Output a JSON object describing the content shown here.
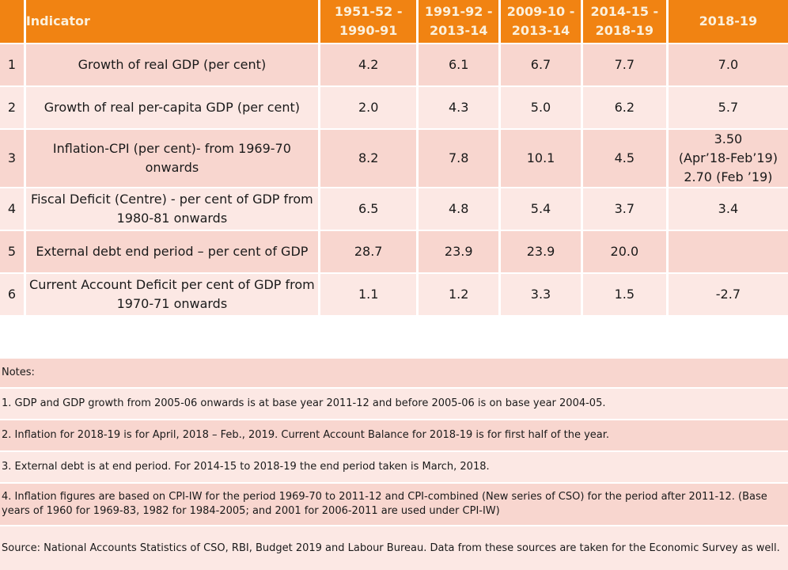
{
  "table": {
    "headers": [
      "",
      "Indicator",
      "1951-52 -\n1990-91",
      "1991-92 -\n2013-14",
      "2009-10 -\n2013-14",
      "2014-15 -\n2018-19",
      "2018-19"
    ],
    "header_lines": [
      [
        "1951-52 -",
        "1990-91"
      ],
      [
        "1991-92 -",
        "2013-14"
      ],
      [
        "2009-10 -",
        "2013-14"
      ],
      [
        "2014-15 -",
        "2018-19"
      ],
      [
        "2018-19"
      ]
    ],
    "indicator_header": "Indicator",
    "rows": [
      {
        "no": "1",
        "indicator": "Growth of real GDP (per cent)",
        "values": [
          "4.2",
          "6.1",
          "6.7",
          "7.7",
          "7.0"
        ]
      },
      {
        "no": "2",
        "indicator": "Growth of real per-capita GDP (per cent)",
        "values": [
          "2.0",
          "4.3",
          "5.0",
          "6.2",
          "5.7"
        ]
      },
      {
        "no": "3",
        "indicator": "Inflation-CPI (per cent)- from 1969-70 onwards",
        "values": [
          "8.2",
          "7.8",
          "10.1",
          "4.5",
          "3.50 (Apr’18-Feb’19) 2.70 (Feb ’19)"
        ]
      },
      {
        "no": "4",
        "indicator": "Fiscal Deficit (Centre) - per cent of GDP from 1980-81 onwards",
        "values": [
          "6.5",
          "4.8",
          "5.4",
          "3.7",
          "3.4"
        ]
      },
      {
        "no": "5",
        "indicator": "External debt end period – per cent of GDP",
        "values": [
          "28.7",
          "23.9",
          "23.9",
          "20.0",
          ""
        ]
      },
      {
        "no": "6",
        "indicator": "Current Account Deficit per cent of GDP from 1970-71 onwards",
        "values": [
          "1.1",
          "1.2",
          "3.3",
          "1.5",
          "-2.7"
        ]
      }
    ],
    "row3_last_lines": [
      "3.50",
      "(Apr’18-Feb’19)",
      "2.70 (Feb ’19)"
    ]
  },
  "notes": {
    "title": "Notes:",
    "items": [
      "1. GDP and GDP growth from 2005-06 onwards is at base year 2011-12 and before 2005-06 is on base year 2004-05.",
      "2. Inflation for 2018-19 is for April, 2018 – Feb., 2019.  Current Account Balance for 2018-19 is for first half of the year.",
      "3. External debt is at end period. For 2014-15 to 2018-19 the end period taken is March, 2018.",
      "4. Inflation figures are based on CPI-IW for the period 1969-70 to 2011-12 and CPI-combined (New series of CSO) for the period after 2011-12. (Base years of 1960 for 1969-83, 1982 for 1984-2005; and 2001 for 2006-2011 are used under CPI-IW)"
    ],
    "source": "Source: National Accounts Statistics of CSO, RBI, Budget 2019 and Labour Bureau. Data from these sources are taken for the Economic Survey  as well."
  },
  "colors": {
    "header_bg": "#f18312",
    "header_text": "#fbf0dc",
    "row_dark": "#f8d6cf",
    "row_light": "#fce8e4"
  }
}
